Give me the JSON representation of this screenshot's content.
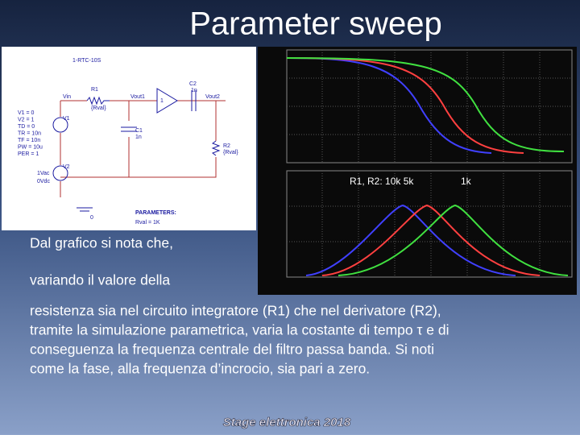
{
  "title": "Parameter sweep",
  "schematic": {
    "header": "1-RTC-10S",
    "labels": [
      "R1",
      "{Rval}",
      "Vin",
      "Vout1",
      "C2",
      "1n",
      "Vout2",
      "1",
      "C1",
      "1n",
      "R2",
      "{Rval}",
      "V1",
      "V2",
      "1Vac",
      "0Vdc",
      "0"
    ],
    "source": [
      "V1 = 0",
      "V2 = 1",
      "TD = 0",
      "TR = 10n",
      "TF = 10n",
      "PW = 10u",
      "PER = 1"
    ],
    "parameters": {
      "heading": "PARAMETERS:",
      "value": "Rval = 1K"
    }
  },
  "plot": {
    "legend": "R1, R2:  10k  5k",
    "legend_last": "1k"
  },
  "body": {
    "intro": [
      "Dal grafico si nota che,",
      "variando il valore della"
    ],
    "lines": [
      "resistenza sia nel circuito integratore (R1) che nel derivatore (R2),",
      "tramite la simulazione parametrica, varia la costante di tempo τ e di",
      "conseguenza la frequenza centrale del filtro passa banda. Si noti",
      "come la fase, alla frequenza d’incrocio, sia pari a zero."
    ]
  },
  "footer": "Stage elettronica 2018"
}
